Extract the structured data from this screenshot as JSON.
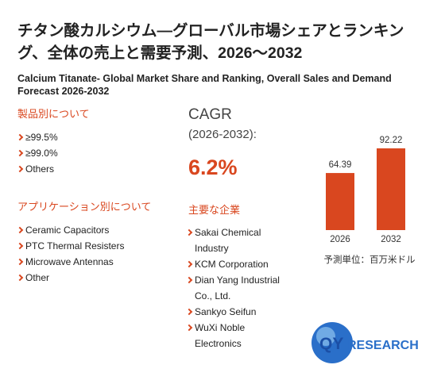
{
  "header": {
    "title": "チタン酸カルシウム—グローバル市場シェアとランキング、全体の売上と需要予測、2026～2032",
    "subtitle": "Calcium Titanate- Global Market Share and Ranking, Overall Sales and Demand Forecast 2026-2032"
  },
  "product_section": {
    "heading": "製品別について",
    "items": [
      "≥99.5%",
      "≥99.0%",
      "Others"
    ]
  },
  "application_section": {
    "heading": "アプリケーション別について",
    "items": [
      "Ceramic Capacitors",
      "PTC Thermal Resisters",
      "Microwave Antennas",
      "Other"
    ]
  },
  "cagr": {
    "label": "CAGR",
    "period": "(2026-2032):",
    "value": "6.2%"
  },
  "companies": {
    "heading": "主要な企業",
    "items": [
      "Sakai Chemical Industry",
      "KCM Corporation",
      "Dian Yang Industrial Co., Ltd.",
      "Sankyo Seifun",
      "WuXi Noble Electronics"
    ]
  },
  "chart_data": {
    "type": "bar",
    "categories": [
      "2026",
      "2032"
    ],
    "values": [
      64.39,
      92.22
    ],
    "color": "#d9471f",
    "unit_note": "予測単位：百万米ドル"
  },
  "logo": {
    "prefix": "QY",
    "suffix": "RESEARCH"
  }
}
